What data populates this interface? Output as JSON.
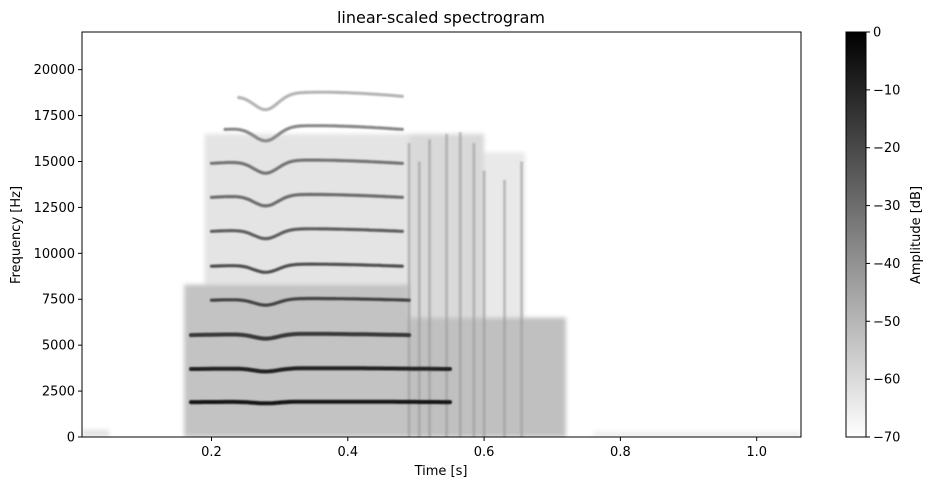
{
  "chart_data": {
    "type": "heatmap",
    "title": "linear-scaled spectrogram",
    "xlabel": "Time [s]",
    "ylabel": "Frequency [Hz]",
    "xlim": [
      0.01,
      1.065
    ],
    "ylim": [
      0,
      22050
    ],
    "x_ticks": [
      {
        "value": 0.2,
        "label": "0.2"
      },
      {
        "value": 0.4,
        "label": "0.4"
      },
      {
        "value": 0.6,
        "label": "0.6"
      },
      {
        "value": 0.8,
        "label": "0.8"
      },
      {
        "value": 1.0,
        "label": "1.0"
      }
    ],
    "y_ticks": [
      {
        "value": 0,
        "label": "0"
      },
      {
        "value": 2500,
        "label": "2500"
      },
      {
        "value": 5000,
        "label": "5000"
      },
      {
        "value": 7500,
        "label": "7500"
      },
      {
        "value": 10000,
        "label": "10000"
      },
      {
        "value": 12500,
        "label": "12500"
      },
      {
        "value": 15000,
        "label": "15000"
      },
      {
        "value": 17500,
        "label": "17500"
      },
      {
        "value": 20000,
        "label": "20000"
      }
    ],
    "colorbar": {
      "label": "Amplitude [dB]",
      "range": [
        -70,
        0
      ],
      "colormap": "gray_r",
      "ticks": [
        {
          "value": 0,
          "label": "0"
        },
        {
          "value": -10,
          "label": "−10"
        },
        {
          "value": -20,
          "label": "−20"
        },
        {
          "value": -30,
          "label": "−30"
        },
        {
          "value": -40,
          "label": "−40"
        },
        {
          "value": -50,
          "label": "−50"
        },
        {
          "value": -60,
          "label": "−60"
        },
        {
          "value": -70,
          "label": "−70"
        }
      ]
    },
    "regions": [
      {
        "t0": 0.16,
        "t1": 0.49,
        "f0": 0,
        "f1": 8300,
        "db": -48
      },
      {
        "t0": 0.19,
        "t1": 0.49,
        "f0": 8300,
        "f1": 16500,
        "db": -60
      },
      {
        "t0": 0.49,
        "t1": 0.72,
        "f0": 0,
        "f1": 6500,
        "db": -47
      },
      {
        "t0": 0.49,
        "t1": 0.6,
        "f0": 6500,
        "f1": 16500,
        "db": -56
      },
      {
        "t0": 0.6,
        "t1": 0.66,
        "f0": 6500,
        "f1": 15500,
        "db": -62
      },
      {
        "t0": 0.01,
        "t1": 0.05,
        "f0": 0,
        "f1": 400,
        "db": -60
      },
      {
        "t0": 0.76,
        "t1": 1.065,
        "f0": 0,
        "f1": 300,
        "db": -64
      }
    ],
    "harmonics": [
      {
        "f": 1900,
        "db": -5,
        "t0": 0.17,
        "t1": 0.55
      },
      {
        "f": 3700,
        "db": -10,
        "t0": 0.17,
        "t1": 0.55
      },
      {
        "f": 5550,
        "db": -15,
        "t0": 0.17,
        "t1": 0.49
      },
      {
        "f": 7450,
        "db": -18,
        "t0": 0.2,
        "t1": 0.49
      },
      {
        "f": 9300,
        "db": -22,
        "t0": 0.2,
        "t1": 0.48
      },
      {
        "f": 11200,
        "db": -26,
        "t0": 0.2,
        "t1": 0.48
      },
      {
        "f": 13050,
        "db": -30,
        "t0": 0.2,
        "t1": 0.48
      },
      {
        "f": 14900,
        "db": -32,
        "t0": 0.2,
        "t1": 0.48
      },
      {
        "f": 16750,
        "db": -38,
        "t0": 0.22,
        "t1": 0.48
      },
      {
        "f": 18550,
        "db": -50,
        "t0": 0.24,
        "t1": 0.48
      }
    ],
    "harmonic_dip": {
      "t": 0.28,
      "depth_ratio": 0.045
    },
    "noise_bands": [
      {
        "t": 0.49,
        "f1": 16000
      },
      {
        "t": 0.505,
        "f1": 15000
      },
      {
        "t": 0.52,
        "f1": 16200
      },
      {
        "t": 0.545,
        "f1": 16500
      },
      {
        "t": 0.565,
        "f1": 16600
      },
      {
        "t": 0.585,
        "f1": 16000
      },
      {
        "t": 0.6,
        "f1": 14500
      },
      {
        "t": 0.63,
        "f1": 14000
      },
      {
        "t": 0.655,
        "f1": 15000
      }
    ]
  }
}
